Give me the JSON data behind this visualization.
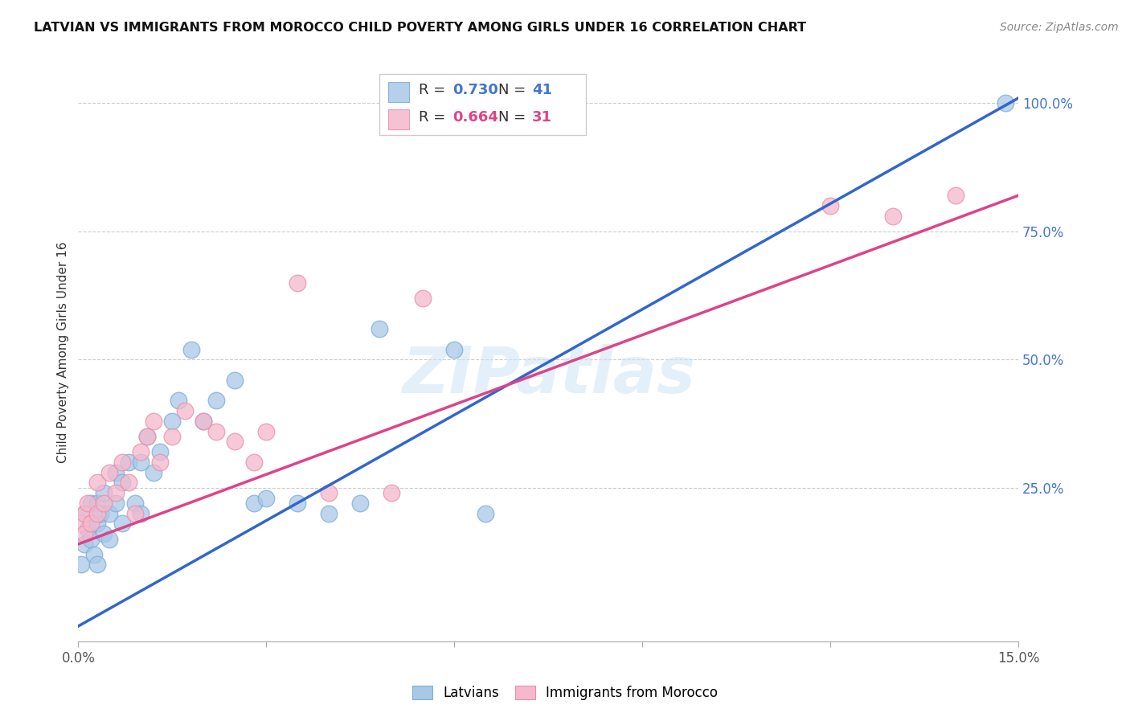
{
  "title": "LATVIAN VS IMMIGRANTS FROM MOROCCO CHILD POVERTY AMONG GIRLS UNDER 16 CORRELATION CHART",
  "source": "Source: ZipAtlas.com",
  "ylabel": "Child Poverty Among Girls Under 16",
  "xlim": [
    0.0,
    0.15
  ],
  "ylim": [
    -0.05,
    1.08
  ],
  "xticks": [
    0.0,
    0.03,
    0.06,
    0.09,
    0.12,
    0.15
  ],
  "xtick_labels": [
    "0.0%",
    "",
    "",
    "",
    "",
    "15.0%"
  ],
  "yticks_right": [
    0.25,
    0.5,
    0.75,
    1.0
  ],
  "ytick_labels_right": [
    "25.0%",
    "50.0%",
    "75.0%",
    "100.0%"
  ],
  "grid_color": "#cccccc",
  "background_color": "#ffffff",
  "watermark": "ZIPatlas",
  "legend_r1": "0.730",
  "legend_n1": "41",
  "legend_r2": "0.664",
  "legend_n2": "31",
  "latvian_color": "#a8c8e8",
  "latvian_edge_color": "#7bafd4",
  "morocco_color": "#f5b8cc",
  "morocco_edge_color": "#e890aa",
  "latvian_line_color": "#3366cc",
  "morocco_line_color": "#dd4488",
  "latvian_scatter_x": [
    0.0005,
    0.001,
    0.001,
    0.0015,
    0.002,
    0.002,
    0.0025,
    0.003,
    0.003,
    0.003,
    0.0035,
    0.004,
    0.004,
    0.005,
    0.005,
    0.006,
    0.006,
    0.007,
    0.007,
    0.008,
    0.009,
    0.01,
    0.01,
    0.011,
    0.012,
    0.013,
    0.015,
    0.016,
    0.018,
    0.02,
    0.022,
    0.025,
    0.028,
    0.03,
    0.035,
    0.04,
    0.045,
    0.048,
    0.06,
    0.065,
    0.148
  ],
  "latvian_scatter_y": [
    0.1,
    0.14,
    0.2,
    0.17,
    0.15,
    0.22,
    0.12,
    0.18,
    0.22,
    0.1,
    0.2,
    0.16,
    0.24,
    0.15,
    0.2,
    0.22,
    0.28,
    0.18,
    0.26,
    0.3,
    0.22,
    0.3,
    0.2,
    0.35,
    0.28,
    0.32,
    0.38,
    0.42,
    0.52,
    0.38,
    0.42,
    0.46,
    0.22,
    0.23,
    0.22,
    0.2,
    0.22,
    0.56,
    0.52,
    0.2,
    1.0
  ],
  "morocco_scatter_x": [
    0.0005,
    0.001,
    0.001,
    0.0015,
    0.002,
    0.003,
    0.003,
    0.004,
    0.005,
    0.006,
    0.007,
    0.008,
    0.009,
    0.01,
    0.011,
    0.012,
    0.013,
    0.015,
    0.017,
    0.02,
    0.022,
    0.025,
    0.028,
    0.03,
    0.035,
    0.04,
    0.05,
    0.055,
    0.12,
    0.13,
    0.14
  ],
  "morocco_scatter_y": [
    0.18,
    0.2,
    0.16,
    0.22,
    0.18,
    0.2,
    0.26,
    0.22,
    0.28,
    0.24,
    0.3,
    0.26,
    0.2,
    0.32,
    0.35,
    0.38,
    0.3,
    0.35,
    0.4,
    0.38,
    0.36,
    0.34,
    0.3,
    0.36,
    0.65,
    0.24,
    0.24,
    0.62,
    0.8,
    0.78,
    0.82
  ],
  "latvian_trend_x": [
    0.0,
    0.15
  ],
  "latvian_trend_y": [
    -0.02,
    1.01
  ],
  "morocco_trend_x": [
    0.0,
    0.15
  ],
  "morocco_trend_y": [
    0.14,
    0.82
  ]
}
